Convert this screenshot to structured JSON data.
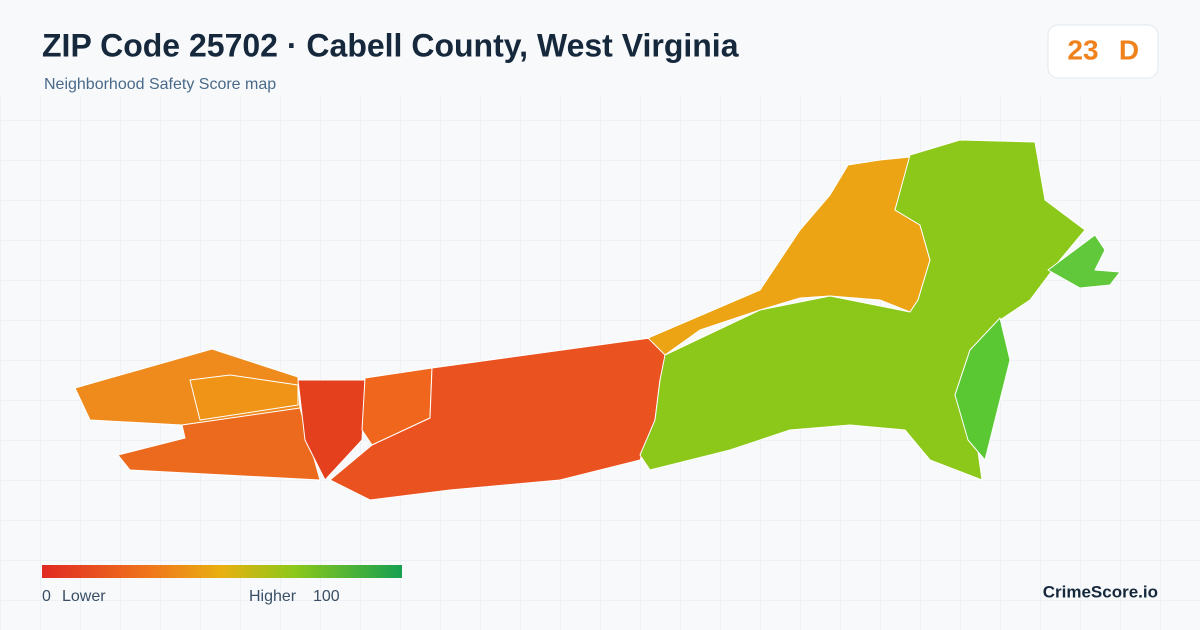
{
  "header": {
    "title": "ZIP Code 25702 · Cabell County, West Virginia",
    "subtitle": "Neighborhood Safety Score map"
  },
  "score": {
    "value": "23",
    "grade": "D"
  },
  "legend": {
    "min": "0",
    "min_label": "Lower",
    "max_label": "Higher",
    "max": "100"
  },
  "footer": {
    "brand": "CrimeScore.io"
  }
}
